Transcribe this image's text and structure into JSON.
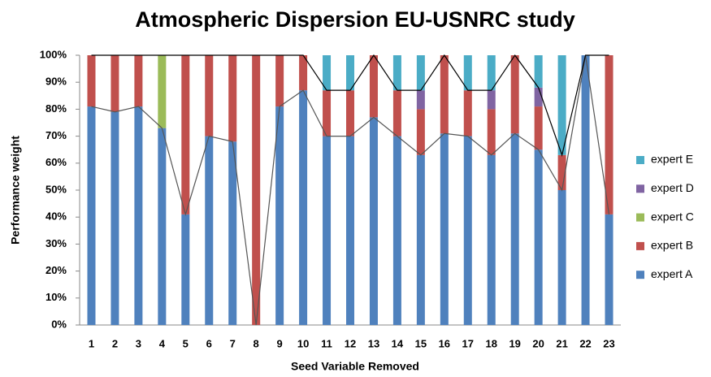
{
  "chart_data": {
    "type": "stacked_bar",
    "title": "Atmospheric Dispersion EU-USNRC study",
    "x_label": "Seed Variable Removed",
    "y_label": "Performance weight",
    "categories": [
      "1",
      "2",
      "3",
      "4",
      "5",
      "6",
      "7",
      "8",
      "9",
      "10",
      "11",
      "12",
      "13",
      "14",
      "15",
      "16",
      "17",
      "18",
      "19",
      "20",
      "21",
      "22",
      "23"
    ],
    "series": [
      {
        "name": "expert A",
        "color": "#4f81bd",
        "values": [
          81,
          79,
          81,
          73,
          41,
          70,
          68,
          0,
          81,
          87,
          70,
          70,
          77,
          70,
          63,
          71,
          70,
          63,
          71,
          65,
          50,
          100,
          41
        ]
      },
      {
        "name": "expert B",
        "color": "#c0504d",
        "values": [
          19,
          21,
          19,
          0,
          59,
          30,
          32,
          100,
          19,
          13,
          17,
          17,
          23,
          17,
          17,
          29,
          17,
          17,
          29,
          16,
          13,
          0,
          59
        ]
      },
      {
        "name": "expert C",
        "color": "#9bbb59",
        "values": [
          0,
          0,
          0,
          27,
          0,
          0,
          0,
          0,
          0,
          0,
          0,
          0,
          0,
          0,
          0,
          0,
          0,
          0,
          0,
          0,
          0,
          0,
          0
        ]
      },
      {
        "name": "expert D",
        "color": "#8064a2",
        "values": [
          0,
          0,
          0,
          0,
          0,
          0,
          0,
          0,
          0,
          0,
          0,
          0,
          0,
          0,
          7,
          0,
          0,
          7,
          0,
          7,
          0,
          0,
          0
        ]
      },
      {
        "name": "expert E",
        "color": "#4bacc6",
        "values": [
          0,
          0,
          0,
          0,
          0,
          0,
          0,
          0,
          0,
          0,
          13,
          13,
          0,
          13,
          13,
          0,
          13,
          13,
          0,
          12,
          37,
          0,
          0
        ]
      }
    ],
    "ylim": [
      0,
      100
    ],
    "yticks": [
      {
        "value": 0,
        "label": "0%"
      },
      {
        "value": 10,
        "label": "10%"
      },
      {
        "value": 20,
        "label": "20%"
      },
      {
        "value": 30,
        "label": "30%"
      },
      {
        "value": 40,
        "label": "40%"
      },
      {
        "value": 50,
        "label": "50%"
      },
      {
        "value": 60,
        "label": "60%"
      },
      {
        "value": 70,
        "label": "70%"
      },
      {
        "value": 80,
        "label": "80%"
      },
      {
        "value": 90,
        "label": "90%"
      },
      {
        "value": 100,
        "label": "100%"
      }
    ],
    "legend": "right"
  }
}
